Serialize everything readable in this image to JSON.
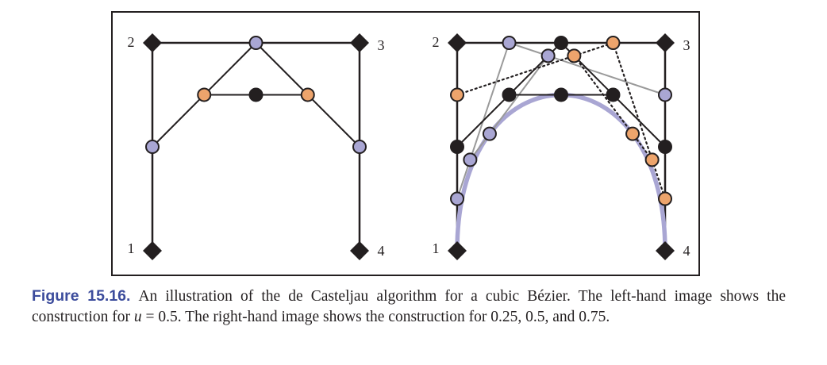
{
  "figure": {
    "number_label": "Figure 15.16.",
    "caption_part1": "An illustration of the de Casteljau algorithm for a cubic Bézier. The left-hand image shows the construction for ",
    "caption_var": "u",
    "caption_part2": " = 0.5. The right-hand image shows the construction for 0.25, 0.5, and 0.75."
  },
  "control_point_labels": [
    "1",
    "2",
    "3",
    "4"
  ],
  "colors": {
    "ink": "#231f20",
    "level1_point": "#a9a6d3",
    "level2_point": "#eda46c",
    "curve": "#a9a6d3",
    "t025_lines": "#9a9a9a",
    "t075_lines": "#231f20",
    "construction_lines": "#231f20"
  },
  "construction": {
    "left_parameters": [
      0.5
    ],
    "right_parameters": [
      0.25,
      0.5,
      0.75
    ]
  }
}
